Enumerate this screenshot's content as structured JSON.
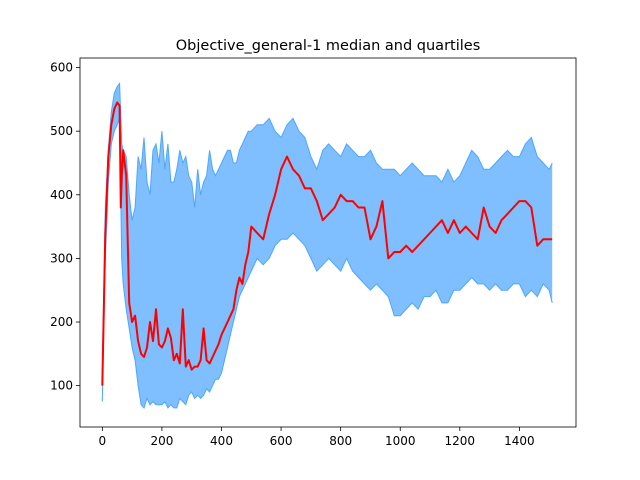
{
  "chart_data": {
    "type": "area",
    "title": "Objective_general-1 median and quartiles",
    "xlabel": "",
    "ylabel": "",
    "xlim": [
      -75,
      1590
    ],
    "ylim": [
      35,
      615
    ],
    "x_ticks": [
      0,
      200,
      400,
      600,
      800,
      1000,
      1200,
      1400
    ],
    "y_ticks": [
      100,
      200,
      300,
      400,
      500,
      600
    ],
    "grid": false,
    "legend": "none",
    "colors": {
      "band_fill": "#7fbfff",
      "band_edge": "#4da6ff",
      "median": "#ff0000"
    },
    "series": [
      {
        "role": "upper-quartile",
        "x": [
          0,
          10,
          20,
          30,
          40,
          50,
          58,
          65,
          70,
          80,
          90,
          100,
          110,
          120,
          130,
          140,
          150,
          160,
          170,
          180,
          190,
          200,
          210,
          220,
          230,
          240,
          250,
          260,
          270,
          280,
          290,
          300,
          310,
          320,
          330,
          340,
          350,
          360,
          370,
          380,
          390,
          400,
          410,
          420,
          430,
          440,
          450,
          460,
          470,
          480,
          490,
          500,
          520,
          540,
          560,
          580,
          600,
          620,
          640,
          660,
          680,
          700,
          720,
          740,
          760,
          780,
          800,
          820,
          840,
          860,
          880,
          900,
          920,
          940,
          960,
          980,
          1000,
          1020,
          1040,
          1060,
          1080,
          1100,
          1120,
          1140,
          1160,
          1180,
          1200,
          1220,
          1240,
          1260,
          1280,
          1300,
          1320,
          1340,
          1360,
          1380,
          1400,
          1420,
          1440,
          1460,
          1480,
          1500,
          1510
        ],
        "y": [
          110,
          380,
          470,
          530,
          560,
          570,
          575,
          480,
          470,
          460,
          400,
          360,
          380,
          460,
          440,
          490,
          420,
          400,
          470,
          480,
          450,
          500,
          440,
          480,
          420,
          420,
          440,
          470,
          450,
          460,
          430,
          420,
          380,
          440,
          400,
          420,
          430,
          470,
          440,
          430,
          440,
          450,
          460,
          470,
          470,
          450,
          450,
          470,
          480,
          490,
          500,
          500,
          510,
          510,
          520,
          500,
          490,
          510,
          520,
          500,
          490,
          460,
          440,
          470,
          480,
          470,
          460,
          480,
          470,
          460,
          460,
          470,
          450,
          440,
          440,
          440,
          430,
          440,
          450,
          440,
          430,
          430,
          430,
          420,
          440,
          420,
          430,
          450,
          470,
          460,
          440,
          440,
          450,
          460,
          470,
          460,
          460,
          480,
          490,
          460,
          450,
          440,
          450
        ]
      },
      {
        "role": "median",
        "x": [
          0,
          10,
          20,
          30,
          40,
          50,
          58,
          62,
          66,
          70,
          80,
          90,
          100,
          110,
          120,
          130,
          140,
          150,
          160,
          170,
          180,
          190,
          200,
          210,
          220,
          230,
          240,
          250,
          260,
          270,
          280,
          290,
          300,
          310,
          320,
          330,
          340,
          350,
          360,
          370,
          380,
          390,
          400,
          410,
          420,
          430,
          440,
          450,
          460,
          470,
          480,
          490,
          500,
          520,
          540,
          560,
          580,
          600,
          620,
          640,
          660,
          680,
          700,
          720,
          740,
          760,
          780,
          800,
          820,
          840,
          860,
          880,
          900,
          920,
          940,
          960,
          980,
          1000,
          1020,
          1040,
          1060,
          1080,
          1100,
          1120,
          1140,
          1160,
          1180,
          1200,
          1220,
          1240,
          1260,
          1280,
          1300,
          1320,
          1340,
          1360,
          1380,
          1400,
          1420,
          1440,
          1460,
          1480,
          1500,
          1510
        ],
        "y": [
          100,
          340,
          460,
          510,
          535,
          545,
          540,
          380,
          440,
          470,
          430,
          230,
          200,
          210,
          170,
          150,
          145,
          160,
          200,
          170,
          220,
          165,
          160,
          170,
          190,
          175,
          140,
          150,
          135,
          220,
          130,
          140,
          125,
          130,
          130,
          140,
          190,
          140,
          135,
          145,
          155,
          165,
          180,
          190,
          200,
          210,
          220,
          250,
          270,
          260,
          290,
          310,
          350,
          340,
          330,
          370,
          400,
          440,
          460,
          440,
          430,
          410,
          410,
          390,
          360,
          370,
          380,
          400,
          390,
          390,
          380,
          380,
          330,
          350,
          390,
          300,
          310,
          310,
          320,
          310,
          320,
          330,
          340,
          350,
          360,
          340,
          360,
          340,
          350,
          340,
          330,
          380,
          350,
          340,
          360,
          370,
          380,
          390,
          390,
          380,
          320,
          330,
          330,
          330
        ]
      },
      {
        "role": "lower-quartile",
        "x": [
          0,
          10,
          20,
          30,
          40,
          50,
          58,
          65,
          70,
          80,
          90,
          100,
          110,
          120,
          130,
          140,
          150,
          160,
          170,
          180,
          190,
          200,
          210,
          220,
          230,
          240,
          250,
          260,
          270,
          280,
          290,
          300,
          310,
          320,
          330,
          340,
          350,
          360,
          370,
          380,
          390,
          400,
          410,
          420,
          430,
          440,
          450,
          460,
          470,
          480,
          490,
          500,
          520,
          540,
          560,
          580,
          600,
          620,
          640,
          660,
          680,
          700,
          720,
          740,
          760,
          780,
          800,
          820,
          840,
          860,
          880,
          900,
          920,
          940,
          960,
          980,
          1000,
          1020,
          1040,
          1060,
          1080,
          1100,
          1120,
          1140,
          1160,
          1180,
          1200,
          1220,
          1240,
          1260,
          1280,
          1300,
          1320,
          1340,
          1360,
          1380,
          1400,
          1420,
          1440,
          1460,
          1480,
          1500,
          1510
        ],
        "y": [
          75,
          300,
          420,
          480,
          500,
          510,
          520,
          300,
          260,
          220,
          190,
          160,
          140,
          100,
          70,
          65,
          80,
          70,
          75,
          70,
          70,
          70,
          75,
          65,
          70,
          65,
          65,
          80,
          75,
          70,
          85,
          90,
          80,
          85,
          80,
          85,
          95,
          90,
          100,
          110,
          110,
          120,
          140,
          160,
          180,
          200,
          220,
          240,
          250,
          260,
          270,
          280,
          300,
          290,
          300,
          320,
          330,
          330,
          340,
          330,
          320,
          300,
          280,
          290,
          300,
          290,
          280,
          300,
          280,
          270,
          260,
          250,
          260,
          250,
          240,
          210,
          210,
          220,
          230,
          220,
          240,
          240,
          250,
          230,
          230,
          250,
          250,
          260,
          270,
          260,
          260,
          250,
          260,
          250,
          250,
          260,
          260,
          240,
          250,
          240,
          260,
          250,
          230
        ]
      }
    ]
  }
}
